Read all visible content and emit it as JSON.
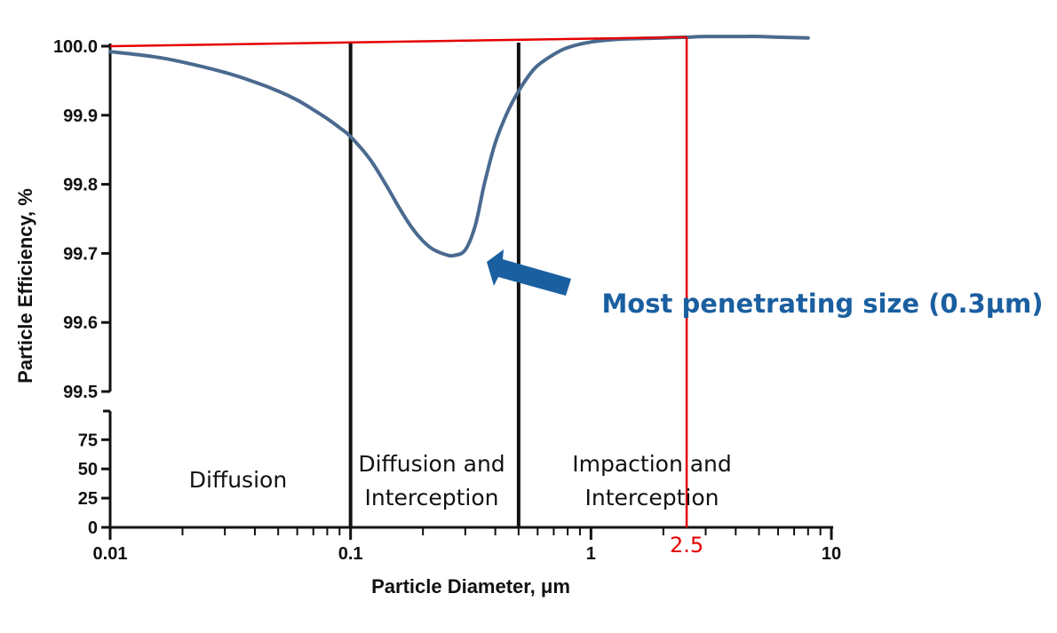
{
  "chart_data": {
    "type": "line",
    "xlabel": "Particle Diameter, μm",
    "ylabel": "Particle Efficiency, %",
    "x_scale": "log",
    "xlim": [
      0.01,
      10
    ],
    "x_ticks": [
      {
        "value": 0.01,
        "label": "0.01"
      },
      {
        "value": 0.1,
        "label": "0.1"
      },
      {
        "value": 1,
        "label": "1"
      },
      {
        "value": 10,
        "label": "10"
      }
    ],
    "y_axis_upper": {
      "range": [
        99.5,
        100.0
      ],
      "ticks": [
        {
          "value": 100.0,
          "label": "100.0"
        },
        {
          "value": 99.9,
          "label": "99.9"
        },
        {
          "value": 99.8,
          "label": "99.8"
        },
        {
          "value": 99.7,
          "label": "99.7"
        },
        {
          "value": 99.6,
          "label": "99.6"
        },
        {
          "value": 99.5,
          "label": "99.5"
        }
      ]
    },
    "y_axis_lower": {
      "range": [
        0,
        99.5
      ],
      "ticks": [
        {
          "value": 75,
          "label": "75"
        },
        {
          "value": 50,
          "label": "50"
        },
        {
          "value": 25,
          "label": "25"
        },
        {
          "value": 0,
          "label": "0"
        }
      ]
    },
    "series": [
      {
        "color": "#4a6a8f",
        "x": [
          0.01,
          0.015,
          0.02,
          0.03,
          0.04,
          0.05,
          0.06,
          0.07,
          0.08,
          0.09,
          0.1,
          0.12,
          0.14,
          0.16,
          0.18,
          0.2,
          0.22,
          0.25,
          0.27,
          0.3,
          0.33,
          0.36,
          0.4,
          0.45,
          0.5,
          0.55,
          0.6,
          0.7,
          0.8,
          1.0,
          1.3,
          1.6,
          2.0,
          2.5,
          3.0,
          4.0,
          5.0,
          6.0,
          8.0
        ],
        "y": [
          99.992,
          99.985,
          99.977,
          99.962,
          99.948,
          99.935,
          99.922,
          99.908,
          99.895,
          99.882,
          99.869,
          99.837,
          99.8,
          99.765,
          99.737,
          99.718,
          99.706,
          99.698,
          99.697,
          99.705,
          99.74,
          99.8,
          99.86,
          99.905,
          99.935,
          99.957,
          99.972,
          99.988,
          99.998,
          100.006,
          100.01,
          100.011,
          100.012,
          100.013,
          100.014,
          100.014,
          100.014,
          100.013,
          100.012
        ]
      }
    ],
    "region_boundaries": [
      0.1,
      0.5
    ],
    "regions": [
      {
        "label_lines": [
          "Diffusion"
        ]
      },
      {
        "label_lines": [
          "Diffusion and",
          "Interception"
        ]
      },
      {
        "label_lines": [
          "Impaction and",
          "Interception"
        ]
      }
    ],
    "annotation": {
      "text": "Most penetrating size (0.3μm)",
      "color": "#1a5fa0",
      "points_to_x": 0.3
    },
    "reference_line": {
      "color": "#e60000",
      "x": 2.5,
      "label": "2.5",
      "y_start": 100.0,
      "y_end": 100.013
    }
  }
}
